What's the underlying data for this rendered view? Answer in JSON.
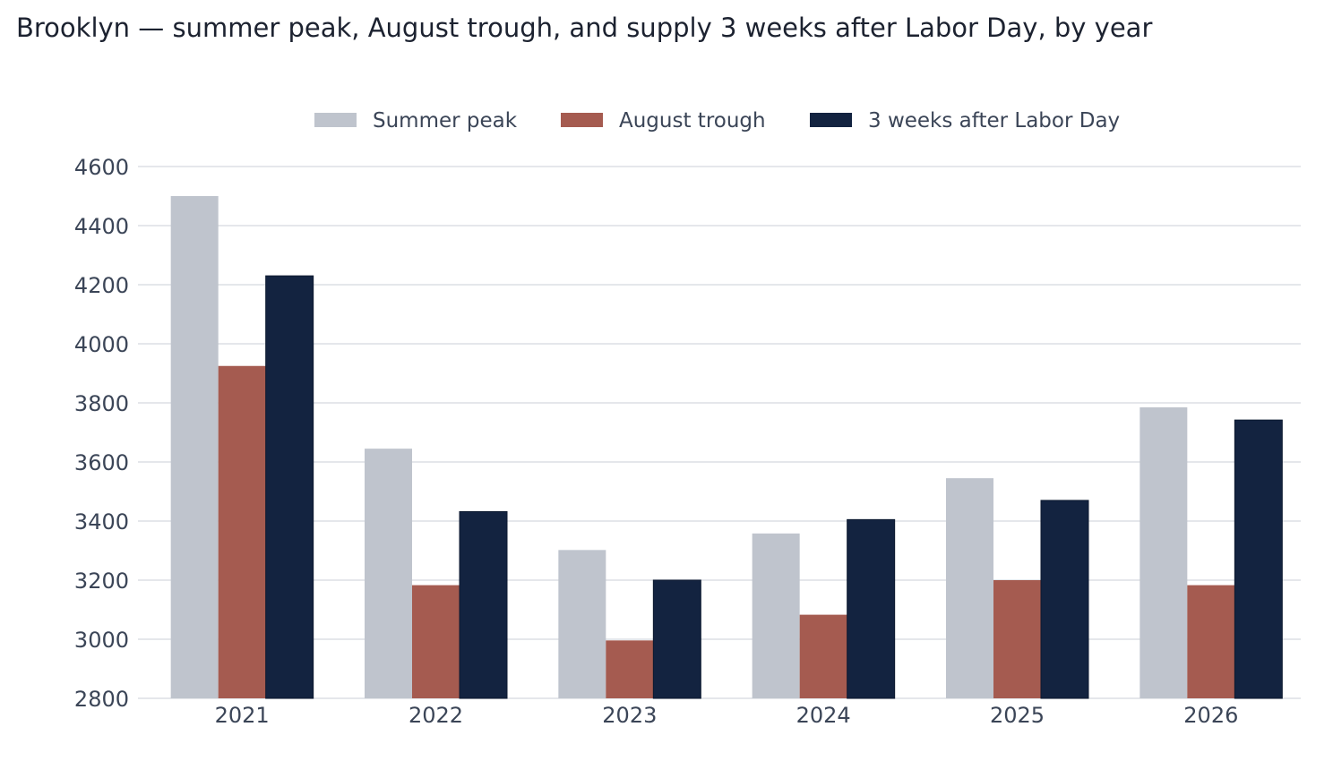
{
  "chart_data": {
    "type": "bar",
    "title": "Brooklyn — summer peak, August trough, and supply 3 weeks after Labor Day, by year",
    "xlabel": "",
    "ylabel": "",
    "ylim": [
      2800,
      4600
    ],
    "yticks": [
      2800,
      3000,
      3200,
      3400,
      3600,
      3800,
      4000,
      4200,
      4400,
      4600
    ],
    "grid": true,
    "legend_position": "top-center",
    "categories": [
      "2021",
      "2022",
      "2023",
      "2024",
      "2025",
      "2026"
    ],
    "series": [
      {
        "name": "Summer peak",
        "color": "#bfc4cd",
        "values": [
          4500,
          3645,
          3302,
          3358,
          3545,
          3785
        ]
      },
      {
        "name": "August trough",
        "color": "#a55b50",
        "values": [
          3925,
          3183,
          2996,
          3083,
          3200,
          3183
        ]
      },
      {
        "name": "3 weeks after Labor Day",
        "color": "#132340",
        "values": [
          4230,
          3432,
          3200,
          3405,
          3470,
          3742
        ]
      }
    ]
  }
}
